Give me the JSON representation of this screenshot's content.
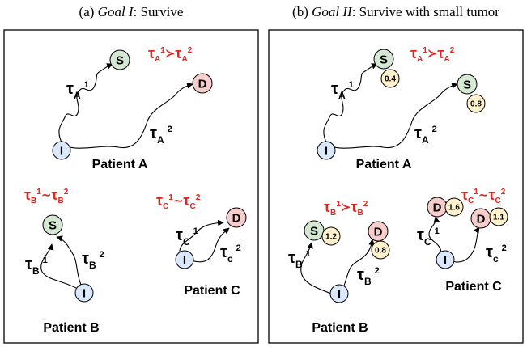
{
  "colors": {
    "S": "#d5e8d4",
    "D": "#f8cecc",
    "I": "#dae8fc",
    "value": "#fff2cc",
    "relation": "#e8231f"
  },
  "left": {
    "caption_prefix": "(a) ",
    "caption_goal": "Goal I",
    "caption_suffix": ": Survive",
    "patient_a": {
      "name": "Patient A",
      "relation": {
        "sym": "τ",
        "sub1": "A",
        "sup1": "1",
        "op": "≻",
        "sub2": "A",
        "sup2": "2"
      },
      "tau1": {
        "sym": "τ",
        "sub": "A",
        "sup": "1"
      },
      "tau2": {
        "sym": "τ",
        "sub": "A",
        "sup": "2"
      },
      "node_I": "I",
      "node_S": "S",
      "node_D": "D"
    },
    "patient_b": {
      "name": "Patient B",
      "relation": {
        "sym": "τ",
        "sub1": "B",
        "sup1": "1",
        "op": "∼",
        "sub2": "B",
        "sup2": "2"
      },
      "tau1": {
        "sym": "τ",
        "sub": "B",
        "sup": "1"
      },
      "tau2": {
        "sym": "τ",
        "sub": "B",
        "sup": "2"
      },
      "node_I": "I",
      "node_S": "S"
    },
    "patient_c": {
      "name": "Patient C",
      "relation": {
        "sym": "τ",
        "sub1": "C",
        "sup1": "1",
        "op": "∼",
        "sub2": "C",
        "sup2": "2"
      },
      "tau1": {
        "sym": "τ",
        "sub": "C",
        "sup": "1"
      },
      "tau2": {
        "sym": "τ",
        "sub": "c",
        "sup": "2"
      },
      "node_I": "I",
      "node_D": "D"
    }
  },
  "right": {
    "caption_prefix": "(b) ",
    "caption_goal": "Goal II",
    "caption_suffix": ": Survive with small tumor",
    "patient_a": {
      "name": "Patient A",
      "relation": {
        "sym": "τ",
        "sub1": "A",
        "sup1": "1",
        "op": "≻",
        "sub2": "A",
        "sup2": "2"
      },
      "tau1": {
        "sym": "τ",
        "sub": "A",
        "sup": "1"
      },
      "tau2": {
        "sym": "τ",
        "sub": "A",
        "sup": "2"
      },
      "node_I": "I",
      "node_S1": "S",
      "node_S2": "S",
      "val_S1": "0.4",
      "val_S2": "0.8"
    },
    "patient_b": {
      "name": "Patient B",
      "relation": {
        "sym": "τ",
        "sub1": "B",
        "sup1": "1",
        "op": "≻",
        "sub2": "B",
        "sup2": "2"
      },
      "tau1": {
        "sym": "τ",
        "sub": "B",
        "sup": "1"
      },
      "tau2": {
        "sym": "τ",
        "sub": "B",
        "sup": "2"
      },
      "node_I": "I",
      "node_S": "S",
      "node_D": "D",
      "val_S": "1.2",
      "val_D": "0.8"
    },
    "patient_c": {
      "name": "Patient C",
      "relation": {
        "sym": "τ",
        "sub1": "C",
        "sup1": "1",
        "op": "∼",
        "sub2": "C",
        "sup2": "2"
      },
      "tau1": {
        "sym": "τ",
        "sub": "C",
        "sup": "1"
      },
      "tau2": {
        "sym": "τ",
        "sub": "c",
        "sup": "2"
      },
      "node_I": "I",
      "node_D1": "D",
      "node_D2": "D",
      "val_D1": "1.6",
      "val_D2": "1.1"
    }
  }
}
